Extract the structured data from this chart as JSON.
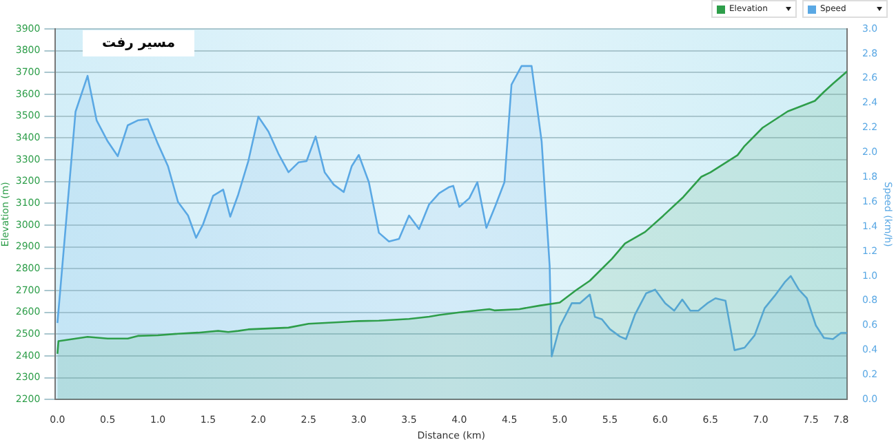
{
  "chart_data": {
    "type": "area",
    "title": "مسیر رفت",
    "xlabel": "Distance (km)",
    "ylabel": "Elevation (m)",
    "y2label": "Speed (km/h)",
    "xlim": [
      -0.02,
      7.86
    ],
    "xticks": [
      {
        "value": 0,
        "label": "0.0"
      },
      0.5,
      {
        "value": 1,
        "label": "1.0"
      },
      1.5,
      {
        "value": 2,
        "label": "2.0"
      },
      2.5,
      {
        "value": 3,
        "label": "3.0"
      },
      3.5,
      {
        "value": 4,
        "label": "4.0"
      },
      4.5,
      {
        "value": 5,
        "label": "5.0"
      },
      5.5,
      {
        "value": 6,
        "label": "6.0"
      },
      6.5,
      {
        "value": 7,
        "label": "7.0"
      },
      7.5,
      7.8
    ],
    "ylim": [
      2200,
      3900
    ],
    "yticks": [
      2200,
      2300,
      2400,
      2500,
      2600,
      2700,
      2800,
      2900,
      3000,
      3100,
      3200,
      3300,
      3400,
      3500,
      3600,
      3700,
      3800,
      3900
    ],
    "y2lim": [
      0,
      3
    ],
    "y2ticks": [
      {
        "value": 0,
        "label": "0.0"
      },
      0.2,
      0.4,
      0.6,
      0.8,
      {
        "value": 1,
        "label": "1.0"
      },
      1.2,
      1.4,
      1.6,
      1.8,
      {
        "value": 2,
        "label": "2.0"
      },
      2.2,
      2.4,
      2.6,
      2.8,
      {
        "value": 3,
        "label": "3.0"
      }
    ],
    "grid": "y",
    "legend": "top right",
    "marker": "none",
    "series": [
      {
        "name": "Elevation",
        "color": "#2e9e4a",
        "x": [
          0,
          0.01,
          0.3,
          0.5,
          0.7,
          0.8,
          1.0,
          1.2,
          1.4,
          1.6,
          1.7,
          1.8,
          1.9,
          2.3,
          2.5,
          2.8,
          3.0,
          3.2,
          3.5,
          3.7,
          3.8,
          4.0,
          4.3,
          4.35,
          4.6,
          4.8,
          5.0,
          5.16,
          5.3,
          5.52,
          5.65,
          5.85,
          6.03,
          6.23,
          6.41,
          6.5,
          6.77,
          6.84,
          7.02,
          7.27,
          7.54,
          7.63,
          7.72,
          7.86
        ],
        "values": [
          2410,
          2468,
          2488,
          2480,
          2480,
          2492,
          2495,
          2502,
          2507,
          2515,
          2510,
          2515,
          2522,
          2530,
          2548,
          2555,
          2560,
          2562,
          2570,
          2580,
          2588,
          2600,
          2615,
          2609,
          2615,
          2631,
          2645,
          2701,
          2745,
          2846,
          2916,
          2969,
          3043,
          3129,
          3222,
          3242,
          3321,
          3363,
          3447,
          3522,
          3570,
          3611,
          3649,
          3705
        ]
      },
      {
        "name": "Speed",
        "color": "#5aa8e4",
        "axis": "y2",
        "x": [
          0,
          0.18,
          0.3,
          0.39,
          0.5,
          0.6,
          0.7,
          0.8,
          0.9,
          1.0,
          1.1,
          1.2,
          1.3,
          1.38,
          1.45,
          1.55,
          1.65,
          1.72,
          1.8,
          1.9,
          2.0,
          2.1,
          2.2,
          2.3,
          2.4,
          2.48,
          2.57,
          2.66,
          2.75,
          2.85,
          2.93,
          3.0,
          3.1,
          3.2,
          3.3,
          3.4,
          3.5,
          3.6,
          3.7,
          3.8,
          3.9,
          3.94,
          4.0,
          4.1,
          4.18,
          4.27,
          4.36,
          4.45,
          4.52,
          4.62,
          4.72,
          4.82,
          4.9,
          4.92,
          5.0,
          5.12,
          5.2,
          5.3,
          5.35,
          5.42,
          5.5,
          5.6,
          5.66,
          5.75,
          5.86,
          5.95,
          6.05,
          6.14,
          6.22,
          6.3,
          6.38,
          6.47,
          6.55,
          6.65,
          6.74,
          6.84,
          6.94,
          7.04,
          7.14,
          7.24,
          7.3,
          7.38,
          7.46,
          7.55,
          7.63,
          7.72,
          7.8,
          7.86
        ],
        "values": [
          0.62,
          2.33,
          2.62,
          2.26,
          2.09,
          1.97,
          2.22,
          2.26,
          2.27,
          2.07,
          1.89,
          1.6,
          1.49,
          1.31,
          1.42,
          1.65,
          1.7,
          1.48,
          1.66,
          1.93,
          2.29,
          2.17,
          1.99,
          1.84,
          1.92,
          1.93,
          2.13,
          1.84,
          1.74,
          1.68,
          1.89,
          1.98,
          1.76,
          1.35,
          1.28,
          1.3,
          1.49,
          1.38,
          1.58,
          1.67,
          1.72,
          1.73,
          1.56,
          1.63,
          1.76,
          1.39,
          1.57,
          1.76,
          2.55,
          2.7,
          2.7,
          2.09,
          1.08,
          0.35,
          0.59,
          0.78,
          0.78,
          0.85,
          0.67,
          0.65,
          0.57,
          0.51,
          0.49,
          0.69,
          0.86,
          0.89,
          0.78,
          0.72,
          0.81,
          0.72,
          0.72,
          0.78,
          0.82,
          0.8,
          0.4,
          0.42,
          0.52,
          0.74,
          0.84,
          0.95,
          1.0,
          0.89,
          0.82,
          0.6,
          0.5,
          0.49,
          0.54,
          0.54
        ]
      }
    ]
  }
}
